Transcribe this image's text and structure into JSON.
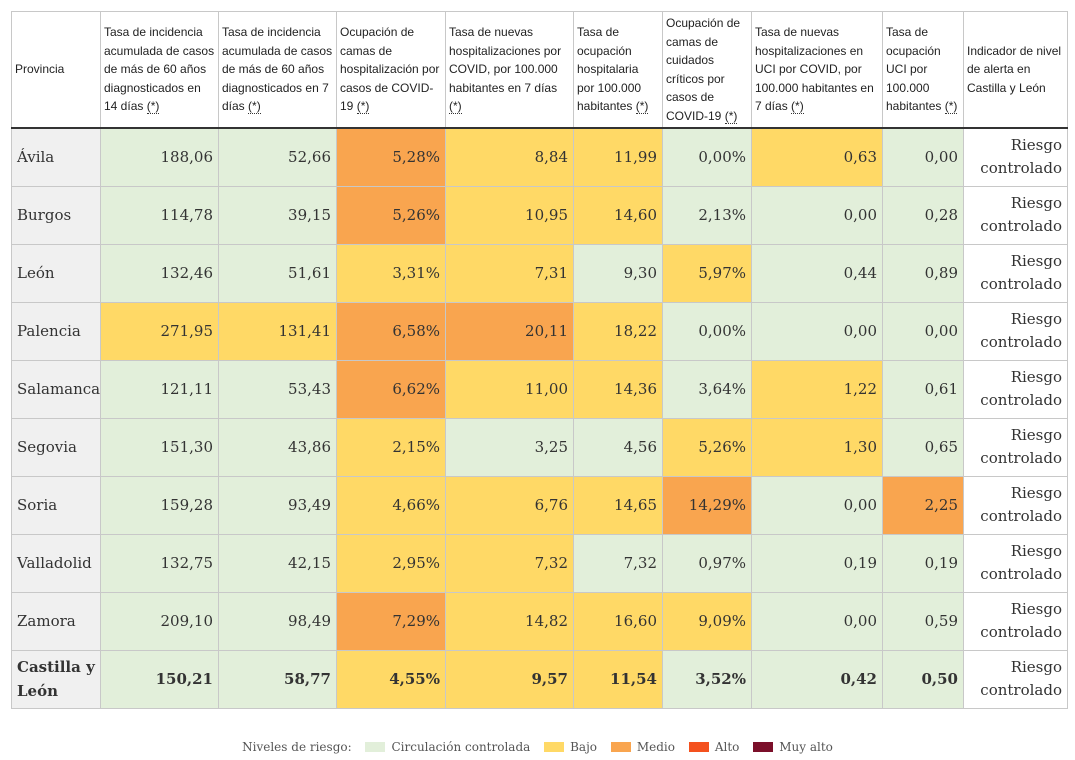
{
  "table": {
    "headers": [
      "Provincia",
      "Tasa de incidencia acumulada de casos de más de 60 años diagnosticados en 14 días",
      "Tasa de incidencia acumulada de casos de más de 60 años diagnosticados en 7 días",
      "Ocupación de camas de hospitalización por casos de COVID-19",
      "Tasa de nuevas hospitalizaciones por COVID, por 100.000 habitantes en 7 días",
      "Tasa de ocupación hospitalaria por 100.000 habitantes",
      "Ocupación de camas de cuidados críticos por casos de COVID-19",
      "Tasa de nuevas hospitalizaciones en UCI por COVID, por 100.000 habitantes en 7 días",
      "Tasa de ocupación UCI por 100.000 habitantes",
      "Indicador de nivel de alerta en Castilla y León"
    ],
    "note_marker": "(*)",
    "rows": [
      {
        "prov": "Ávila",
        "vals": [
          "188,06",
          "52,66",
          "5,28%",
          "8,84",
          "11,99",
          "0,00%",
          "0,63",
          "0,00"
        ],
        "levels": [
          "verde",
          "verde",
          "naranja",
          "amarillo",
          "amarillo",
          "verde",
          "amarillo",
          "verde"
        ],
        "alert": "Riesgo controlado"
      },
      {
        "prov": "Burgos",
        "vals": [
          "114,78",
          "39,15",
          "5,26%",
          "10,95",
          "14,60",
          "2,13%",
          "0,00",
          "0,28"
        ],
        "levels": [
          "verde",
          "verde",
          "naranja",
          "amarillo",
          "amarillo",
          "verde",
          "verde",
          "verde"
        ],
        "alert": "Riesgo controlado"
      },
      {
        "prov": "León",
        "vals": [
          "132,46",
          "51,61",
          "3,31%",
          "7,31",
          "9,30",
          "5,97%",
          "0,44",
          "0,89"
        ],
        "levels": [
          "verde",
          "verde",
          "amarillo",
          "amarillo",
          "verde",
          "amarillo",
          "verde",
          "verde"
        ],
        "alert": "Riesgo controlado"
      },
      {
        "prov": "Palencia",
        "vals": [
          "271,95",
          "131,41",
          "6,58%",
          "20,11",
          "18,22",
          "0,00%",
          "0,00",
          "0,00"
        ],
        "levels": [
          "amarillo",
          "amarillo",
          "naranja",
          "naranja",
          "amarillo",
          "verde",
          "verde",
          "verde"
        ],
        "alert": "Riesgo controlado"
      },
      {
        "prov": "Salamanca",
        "vals": [
          "121,11",
          "53,43",
          "6,62%",
          "11,00",
          "14,36",
          "3,64%",
          "1,22",
          "0,61"
        ],
        "levels": [
          "verde",
          "verde",
          "naranja",
          "amarillo",
          "amarillo",
          "verde",
          "amarillo",
          "verde"
        ],
        "alert": "Riesgo controlado"
      },
      {
        "prov": "Segovia",
        "vals": [
          "151,30",
          "43,86",
          "2,15%",
          "3,25",
          "4,56",
          "5,26%",
          "1,30",
          "0,65"
        ],
        "levels": [
          "verde",
          "verde",
          "amarillo",
          "verde",
          "verde",
          "amarillo",
          "amarillo",
          "verde"
        ],
        "alert": "Riesgo controlado"
      },
      {
        "prov": "Soria",
        "vals": [
          "159,28",
          "93,49",
          "4,66%",
          "6,76",
          "14,65",
          "14,29%",
          "0,00",
          "2,25"
        ],
        "levels": [
          "verde",
          "verde",
          "amarillo",
          "amarillo",
          "amarillo",
          "naranja",
          "verde",
          "naranja"
        ],
        "alert": "Riesgo controlado"
      },
      {
        "prov": "Valladolid",
        "vals": [
          "132,75",
          "42,15",
          "2,95%",
          "7,32",
          "7,32",
          "0,97%",
          "0,19",
          "0,19"
        ],
        "levels": [
          "verde",
          "verde",
          "amarillo",
          "amarillo",
          "verde",
          "verde",
          "verde",
          "verde"
        ],
        "alert": "Riesgo controlado"
      },
      {
        "prov": "Zamora",
        "vals": [
          "209,10",
          "98,49",
          "7,29%",
          "14,82",
          "16,60",
          "9,09%",
          "0,00",
          "0,59"
        ],
        "levels": [
          "verde",
          "verde",
          "naranja",
          "amarillo",
          "amarillo",
          "amarillo",
          "verde",
          "verde"
        ],
        "alert": "Riesgo controlado"
      },
      {
        "prov": "Castilla y León",
        "vals": [
          "150,21",
          "58,77",
          "4,55%",
          "9,57",
          "11,54",
          "3,52%",
          "0,42",
          "0,50"
        ],
        "levels": [
          "verde",
          "verde",
          "amarillo",
          "amarillo",
          "amarillo",
          "verde",
          "verde",
          "verde"
        ],
        "alert": "Riesgo controlado",
        "total": true
      }
    ]
  },
  "legend": {
    "label": "Niveles de riesgo:",
    "items": [
      {
        "label": "Circulación controlada",
        "color": "#e2efda"
      },
      {
        "label": "Bajo",
        "color": "#ffd966"
      },
      {
        "label": "Medio",
        "color": "#f9a54f"
      },
      {
        "label": "Alto",
        "color": "#f4511e"
      },
      {
        "label": "Muy alto",
        "color": "#7b0f2a"
      }
    ]
  }
}
